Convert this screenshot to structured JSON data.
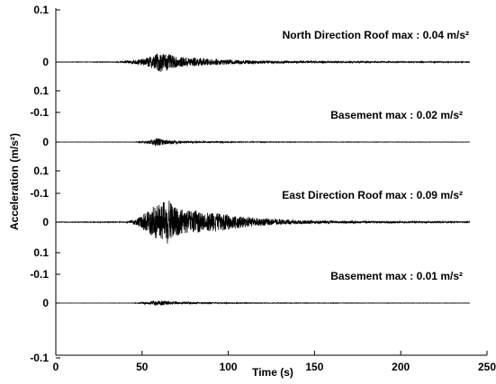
{
  "chart_data": {
    "type": "line",
    "xlabel": "Time (s)",
    "ylabel": "Acceleration (m/s²)",
    "xlim": [
      0,
      250
    ],
    "x_ticks": [
      "0",
      "50",
      "100",
      "150",
      "200",
      "250"
    ],
    "y_tick_labels": [
      "0.1",
      "0",
      "0.1",
      "-0.1",
      "0",
      "0.1",
      "-0.1",
      "0",
      "0.1",
      "-0.1",
      "0",
      "-0.1"
    ],
    "grid": false,
    "duration_s": 240,
    "series": [
      {
        "annotation": "North Direction  Roof max : 0.04 m/s²",
        "max_abs": 0.04,
        "envelope_points": [
          [
            0,
            0.0005
          ],
          [
            35,
            0.001
          ],
          [
            42,
            0.006
          ],
          [
            50,
            0.012
          ],
          [
            56,
            0.025
          ],
          [
            60,
            0.04
          ],
          [
            64,
            0.035
          ],
          [
            70,
            0.02
          ],
          [
            80,
            0.018
          ],
          [
            90,
            0.012
          ],
          [
            100,
            0.009
          ],
          [
            110,
            0.008
          ],
          [
            120,
            0.006
          ],
          [
            140,
            0.004
          ],
          [
            160,
            0.003
          ],
          [
            200,
            0.002
          ],
          [
            240,
            0.0015
          ]
        ]
      },
      {
        "annotation": "Basement max : 0.02 m/s²",
        "max_abs": 0.02,
        "envelope_points": [
          [
            0,
            0.0003
          ],
          [
            45,
            0.0005
          ],
          [
            50,
            0.003
          ],
          [
            55,
            0.008
          ],
          [
            58,
            0.02
          ],
          [
            62,
            0.01
          ],
          [
            70,
            0.006
          ],
          [
            80,
            0.003
          ],
          [
            100,
            0.0015
          ],
          [
            150,
            0.0008
          ],
          [
            240,
            0.0005
          ]
        ]
      },
      {
        "annotation": "East Direction Roof max : 0.09 m/s²",
        "max_abs": 0.09,
        "envelope_points": [
          [
            0,
            0.001
          ],
          [
            40,
            0.0015
          ],
          [
            45,
            0.008
          ],
          [
            50,
            0.025
          ],
          [
            55,
            0.06
          ],
          [
            60,
            0.075
          ],
          [
            65,
            0.09
          ],
          [
            70,
            0.06
          ],
          [
            75,
            0.045
          ],
          [
            80,
            0.05
          ],
          [
            85,
            0.035
          ],
          [
            90,
            0.04
          ],
          [
            100,
            0.03
          ],
          [
            110,
            0.02
          ],
          [
            120,
            0.014
          ],
          [
            140,
            0.008
          ],
          [
            160,
            0.005
          ],
          [
            200,
            0.003
          ],
          [
            240,
            0.002
          ]
        ]
      },
      {
        "annotation": "Basement max : 0.01 m/s²",
        "max_abs": 0.01,
        "envelope_points": [
          [
            0,
            0.0002
          ],
          [
            45,
            0.0004
          ],
          [
            50,
            0.003
          ],
          [
            55,
            0.007
          ],
          [
            60,
            0.01
          ],
          [
            65,
            0.007
          ],
          [
            70,
            0.005
          ],
          [
            80,
            0.003
          ],
          [
            100,
            0.0015
          ],
          [
            150,
            0.0008
          ],
          [
            240,
            0.0004
          ]
        ]
      }
    ]
  }
}
